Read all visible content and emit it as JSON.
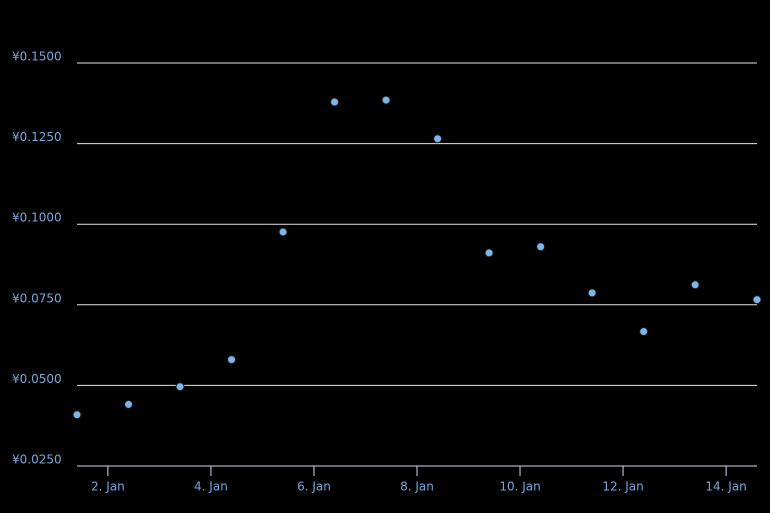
{
  "chart_data": {
    "type": "line",
    "x": [
      1.4,
      2.4,
      3.4,
      4.4,
      5.4,
      6.4,
      7.4,
      8.4,
      9.4,
      10.4,
      11.4,
      12.4,
      13.4,
      14.6
    ],
    "series": [
      {
        "color": "#7cb5ec",
        "values": [
          0.0409,
          0.0441,
          0.0496,
          0.058,
          0.0976,
          0.1379,
          0.1385,
          0.1265,
          0.0911,
          0.093,
          0.0787,
          0.0667,
          0.0812,
          0.0766
        ]
      }
    ],
    "xlim": [
      1.4,
      14.6
    ],
    "xticks": [
      {
        "value": 2,
        "label": "2. Jan"
      },
      {
        "value": 4,
        "label": "4. Jan"
      },
      {
        "value": 6,
        "label": "6. Jan"
      },
      {
        "value": 8,
        "label": "8. Jan"
      },
      {
        "value": 10,
        "label": "10. Jan"
      },
      {
        "value": 12,
        "label": "12. Jan"
      },
      {
        "value": 14,
        "label": "14. Jan"
      }
    ],
    "ylim": [
      0.025,
      0.15
    ],
    "yticks": [
      {
        "value": 0.025,
        "label": "¥0.0250"
      },
      {
        "value": 0.05,
        "label": "¥0.0500"
      },
      {
        "value": 0.075,
        "label": "¥0.0750"
      },
      {
        "value": 0.1,
        "label": "¥0.1000"
      },
      {
        "value": 0.125,
        "label": "¥0.1250"
      },
      {
        "value": 0.15,
        "label": "¥0.1500"
      }
    ],
    "grid": true
  }
}
